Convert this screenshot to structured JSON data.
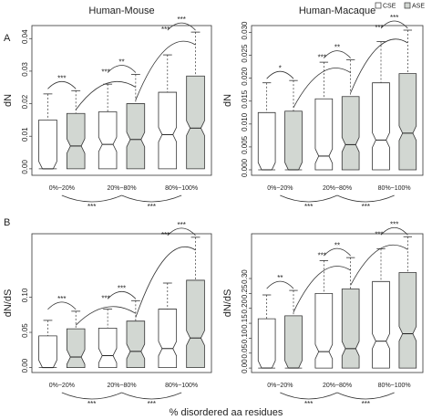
{
  "legend": [
    {
      "name": "CSE",
      "color": "#ffffff"
    },
    {
      "name": "ASE",
      "color": "#d2d7d2"
    }
  ],
  "row_labels": [
    "A",
    "B"
  ],
  "xlabel": "% disordered aa residues",
  "chart_data": [
    {
      "type": "box",
      "title": "Human-Mouse",
      "ylabel": "dN",
      "categories": [
        "0%~20%",
        "20%~80%",
        "80%~100%"
      ],
      "ylim": [
        -0.002,
        0.044
      ],
      "yticks": [
        {
          "value": 0,
          "label": "0.00"
        },
        0.01,
        0.02,
        0.03,
        0.04
      ],
      "series": [
        {
          "low": [
            0,
            0,
            0
          ],
          "q1": [
            0,
            0,
            0
          ],
          "median": [
            0,
            0.0075,
            0.0105
          ],
          "q3": [
            0.015,
            0.0175,
            0.0235
          ],
          "high": [
            0.023,
            0.026,
            0.035
          ]
        },
        {
          "low": [
            0,
            0,
            0
          ],
          "q1": [
            0,
            0,
            0
          ],
          "median": [
            0.007,
            0.009,
            0.0125
          ],
          "q3": [
            0.017,
            0.02,
            0.0285
          ],
          "high": [
            0.024,
            0.029,
            0.042
          ]
        }
      ],
      "pair_stars": [
        "***",
        "**",
        "***"
      ],
      "cross_stars": [
        "***",
        "***"
      ],
      "bottom_stars": [
        "***",
        "***"
      ]
    },
    {
      "type": "box",
      "title": "Human-Macaque",
      "ylabel": "dN",
      "categories": [
        "0%~20%",
        "20%~80%",
        "80%~100%"
      ],
      "ylim": [
        -0.0012,
        0.0315
      ],
      "yticks": [
        {
          "value": 0,
          "label": "0.000"
        },
        0.005,
        {
          "value": 0.01,
          "label": "0.010"
        },
        0.015,
        {
          "value": 0.02,
          "label": "0.020"
        },
        0.025,
        {
          "value": 0.03,
          "label": "0.030"
        }
      ],
      "series": [
        {
          "low": [
            0,
            0,
            0
          ],
          "q1": [
            0,
            0,
            0
          ],
          "median": [
            0,
            0.003,
            0.0065
          ],
          "q3": [
            0.0125,
            0.0155,
            0.019
          ],
          "high": [
            0.019,
            0.0235,
            0.028
          ]
        },
        {
          "low": [
            0,
            0,
            0
          ],
          "q1": [
            0,
            0,
            0
          ],
          "median": [
            0,
            0.0055,
            0.008
          ],
          "q3": [
            0.0128,
            0.016,
            0.021
          ],
          "high": [
            0.0195,
            0.024,
            0.0305
          ]
        }
      ],
      "pair_stars": [
        "*",
        "**",
        "***"
      ],
      "cross_stars": [
        "***",
        "***"
      ],
      "bottom_stars": [
        "***",
        "***"
      ]
    },
    {
      "type": "box",
      "ylabel": "dN/dS",
      "categories": [
        "0%~20%",
        "20%~80%",
        "80%~100%"
      ],
      "ylim": [
        -0.007,
        0.19
      ],
      "yticks": [
        {
          "value": 0,
          "label": "0.00"
        },
        0.05,
        {
          "value": 0.1,
          "label": "0.10"
        }
      ],
      "series": [
        {
          "low": [
            0,
            0,
            0
          ],
          "q1": [
            0,
            0,
            0
          ],
          "median": [
            0,
            0.017,
            0.027
          ],
          "q3": [
            0.045,
            0.056,
            0.083
          ],
          "high": [
            0.067,
            0.083,
            0.12
          ]
        },
        {
          "low": [
            0,
            0,
            0
          ],
          "q1": [
            0,
            0,
            0
          ],
          "median": [
            0.015,
            0.023,
            0.042
          ],
          "q3": [
            0.055,
            0.066,
            0.124
          ],
          "high": [
            0.08,
            0.095,
            0.185
          ]
        }
      ],
      "pair_stars": [
        "***",
        "***",
        "***"
      ],
      "cross_stars": [
        "***",
        "***"
      ],
      "bottom_stars": [
        "***",
        "***"
      ]
    },
    {
      "type": "box",
      "ylabel": "dN/dS",
      "categories": [
        "0%~20%",
        "20%~80%",
        "80%~100%"
      ],
      "ylim": [
        -0.015,
        0.45
      ],
      "yticks": [
        {
          "value": 0,
          "label": "0.00"
        },
        0.05,
        {
          "value": 0.1,
          "label": "0.10"
        },
        0.15,
        {
          "value": 0.2,
          "label": "0.20"
        },
        0.25,
        {
          "value": 0.3,
          "label": "0.30"
        }
      ],
      "series": [
        {
          "low": [
            0,
            0,
            0
          ],
          "q1": [
            0,
            0,
            0
          ],
          "median": [
            0,
            0.055,
            0.09
          ],
          "q3": [
            0.165,
            0.25,
            0.29
          ],
          "high": [
            0.245,
            0.36,
            0.4
          ]
        },
        {
          "low": [
            0,
            0,
            0
          ],
          "q1": [
            0,
            0,
            0
          ],
          "median": [
            0,
            0.065,
            0.115
          ],
          "q3": [
            0.175,
            0.265,
            0.32
          ],
          "high": [
            0.26,
            0.37,
            0.44
          ]
        }
      ],
      "pair_stars": [
        "**",
        "**",
        "***"
      ],
      "cross_stars": [
        "***",
        "***"
      ],
      "bottom_stars": [
        "***",
        "***"
      ]
    }
  ]
}
